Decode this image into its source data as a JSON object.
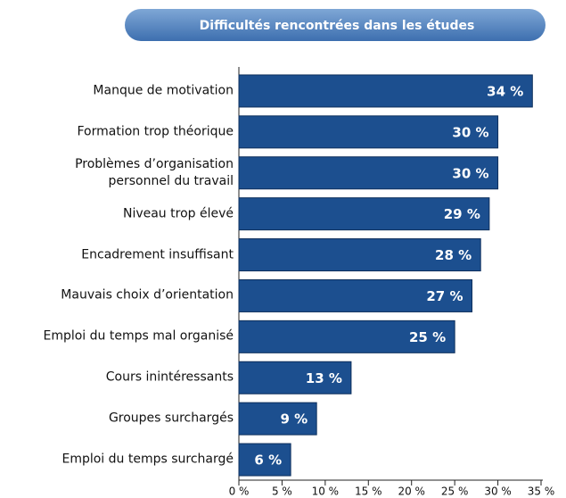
{
  "chart_data": {
    "type": "barh",
    "title": "Difficultés rencontrées dans les études",
    "categories": [
      "Manque de motivation",
      "Formation trop théorique",
      "Problèmes d’organisation\npersonnel du travail",
      "Niveau trop élevé",
      "Encadrement insuffisant",
      "Mauvais choix d’orientation",
      "Emploi du temps mal organisé",
      "Cours inintéressants",
      "Groupes surchargés",
      "Emploi du temps surchargé"
    ],
    "values": [
      34,
      30,
      30,
      29,
      28,
      27,
      25,
      13,
      9,
      6
    ],
    "value_labels": [
      "34 %",
      "30 %",
      "30 %",
      "29 %",
      "28 %",
      "27 %",
      "25 %",
      "13 %",
      "9 %",
      "6 %"
    ],
    "color": "#1c4f8f",
    "xlim": [
      0,
      35
    ],
    "xticks": [
      {
        "value": 0,
        "label": "0 %"
      },
      {
        "value": 5,
        "label": "5 %"
      },
      {
        "value": 10,
        "label": "10 %"
      },
      {
        "value": 15,
        "label": "15 %"
      },
      {
        "value": 20,
        "label": "20 %"
      },
      {
        "value": 25,
        "label": "25 %"
      },
      {
        "value": 30,
        "label": "30 %"
      },
      {
        "value": 35,
        "label": "35 %"
      }
    ]
  }
}
